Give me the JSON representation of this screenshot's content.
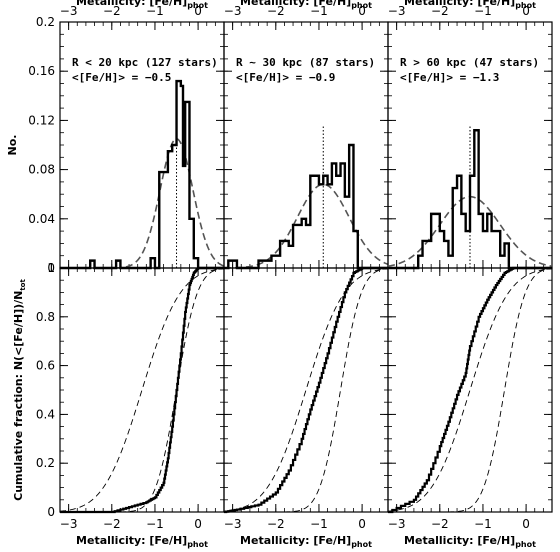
{
  "chart_data": {
    "type": "line",
    "x_axis_label": "Metallicity: [Fe/H]",
    "x_axis_label_sub": "phot",
    "xlim": [
      -3.2,
      0.6
    ],
    "x_ticks": [
      -3,
      -2,
      -1,
      0
    ],
    "x_tick_labels": [
      "−3",
      "−2",
      "−1",
      "0"
    ],
    "top_row": {
      "ylabel": "No.",
      "ylim": [
        0,
        0.2
      ],
      "y_tick_labels": [
        "0",
        "0.04",
        "0.08",
        "0.12",
        "0.16",
        "0.2"
      ],
      "y_ticks": [
        0,
        0.04,
        0.08,
        0.12,
        0.16,
        0.2
      ]
    },
    "bottom_row": {
      "ylabel": "Cumulative fraction: N(<[Fe/H])/N",
      "ylabel_sub": "tot",
      "ylim": [
        0,
        1
      ],
      "y_tick_labels": [
        "0",
        "0.2",
        "0.4",
        "0.6",
        "0.8",
        "1"
      ],
      "y_ticks": [
        0,
        0.2,
        0.4,
        0.6,
        0.8,
        1
      ]
    },
    "panels": [
      {
        "label": "R < 20 kpc (127 stars)",
        "mean_label": "<[Fe/H]> = −0.5",
        "mean": -0.5,
        "gauss_sigma": 0.38,
        "gauss_peak": 0.105,
        "hist_bins": [
          [
            -2.6,
            0.0
          ],
          [
            -2.5,
            0.006
          ],
          [
            -2.4,
            0.0
          ],
          [
            -1.9,
            0.006
          ],
          [
            -1.8,
            0.0
          ],
          [
            -1.1,
            0.008
          ],
          [
            -1.0,
            0.0
          ],
          [
            -0.9,
            0.078
          ],
          [
            -0.8,
            0.078
          ],
          [
            -0.7,
            0.095
          ],
          [
            -0.6,
            0.1
          ],
          [
            -0.5,
            0.152
          ],
          [
            -0.4,
            0.148
          ],
          [
            -0.35,
            0.083
          ],
          [
            -0.3,
            0.135
          ],
          [
            -0.2,
            0.04
          ],
          [
            -0.1,
            0.008
          ],
          [
            0.0,
            0.0
          ]
        ],
        "cdf": [
          [
            -3.2,
            0.0
          ],
          [
            -2.0,
            0.0
          ],
          [
            -1.6,
            0.02
          ],
          [
            -1.2,
            0.04
          ],
          [
            -1.0,
            0.06
          ],
          [
            -0.8,
            0.12
          ],
          [
            -0.7,
            0.22
          ],
          [
            -0.6,
            0.35
          ],
          [
            -0.5,
            0.5
          ],
          [
            -0.4,
            0.65
          ],
          [
            -0.3,
            0.82
          ],
          [
            -0.2,
            0.93
          ],
          [
            -0.1,
            0.98
          ],
          [
            0.0,
            1.0
          ]
        ]
      },
      {
        "label": "R ~ 30 kpc (87 stars)",
        "mean_label": "<[Fe/H]> = −0.9",
        "mean": -0.9,
        "gauss_sigma": 0.6,
        "gauss_peak": 0.068,
        "hist_bins": [
          [
            -3.1,
            0.006
          ],
          [
            -2.9,
            0.0
          ],
          [
            -2.4,
            0.006
          ],
          [
            -2.2,
            0.006
          ],
          [
            -2.1,
            0.01
          ],
          [
            -2.0,
            0.01
          ],
          [
            -1.9,
            0.022
          ],
          [
            -1.7,
            0.018
          ],
          [
            -1.6,
            0.035
          ],
          [
            -1.4,
            0.04
          ],
          [
            -1.3,
            0.035
          ],
          [
            -1.2,
            0.075
          ],
          [
            -1.0,
            0.068
          ],
          [
            -0.9,
            0.075
          ],
          [
            -0.8,
            0.068
          ],
          [
            -0.7,
            0.085
          ],
          [
            -0.6,
            0.075
          ],
          [
            -0.5,
            0.085
          ],
          [
            -0.4,
            0.058
          ],
          [
            -0.3,
            0.1
          ],
          [
            -0.2,
            0.03
          ],
          [
            -0.1,
            0.0
          ],
          [
            0.0,
            0.0
          ]
        ],
        "cdf": [
          [
            -3.2,
            0.0
          ],
          [
            -2.9,
            0.01
          ],
          [
            -2.4,
            0.03
          ],
          [
            -2.0,
            0.08
          ],
          [
            -1.7,
            0.17
          ],
          [
            -1.4,
            0.3
          ],
          [
            -1.2,
            0.42
          ],
          [
            -1.0,
            0.53
          ],
          [
            -0.8,
            0.65
          ],
          [
            -0.6,
            0.78
          ],
          [
            -0.4,
            0.9
          ],
          [
            -0.2,
            0.98
          ],
          [
            0.0,
            1.0
          ]
        ]
      },
      {
        "label": "R > 60 kpc (47 stars)",
        "mean_label": "<[Fe/H]> = −1.3",
        "mean": -1.3,
        "gauss_sigma": 0.7,
        "gauss_peak": 0.058,
        "hist_bins": [
          [
            -3.1,
            0.0
          ],
          [
            -2.5,
            0.01
          ],
          [
            -2.4,
            0.022
          ],
          [
            -2.2,
            0.044
          ],
          [
            -2.0,
            0.03
          ],
          [
            -1.9,
            0.022
          ],
          [
            -1.8,
            0.01
          ],
          [
            -1.7,
            0.065
          ],
          [
            -1.6,
            0.075
          ],
          [
            -1.5,
            0.044
          ],
          [
            -1.4,
            0.03
          ],
          [
            -1.3,
            0.075
          ],
          [
            -1.2,
            0.112
          ],
          [
            -1.1,
            0.044
          ],
          [
            -1.0,
            0.03
          ],
          [
            -0.9,
            0.044
          ],
          [
            -0.8,
            0.03
          ],
          [
            -0.6,
            0.01
          ],
          [
            -0.5,
            0.02
          ],
          [
            -0.4,
            0.0
          ]
        ],
        "cdf": [
          [
            -3.2,
            0.0
          ],
          [
            -2.6,
            0.05
          ],
          [
            -2.3,
            0.13
          ],
          [
            -2.0,
            0.27
          ],
          [
            -1.8,
            0.37
          ],
          [
            -1.6,
            0.48
          ],
          [
            -1.4,
            0.57
          ],
          [
            -1.3,
            0.68
          ],
          [
            -1.1,
            0.8
          ],
          [
            -0.9,
            0.87
          ],
          [
            -0.7,
            0.93
          ],
          [
            -0.5,
            0.98
          ],
          [
            -0.3,
            1.0
          ],
          [
            0.6,
            1.0
          ]
        ]
      }
    ]
  }
}
